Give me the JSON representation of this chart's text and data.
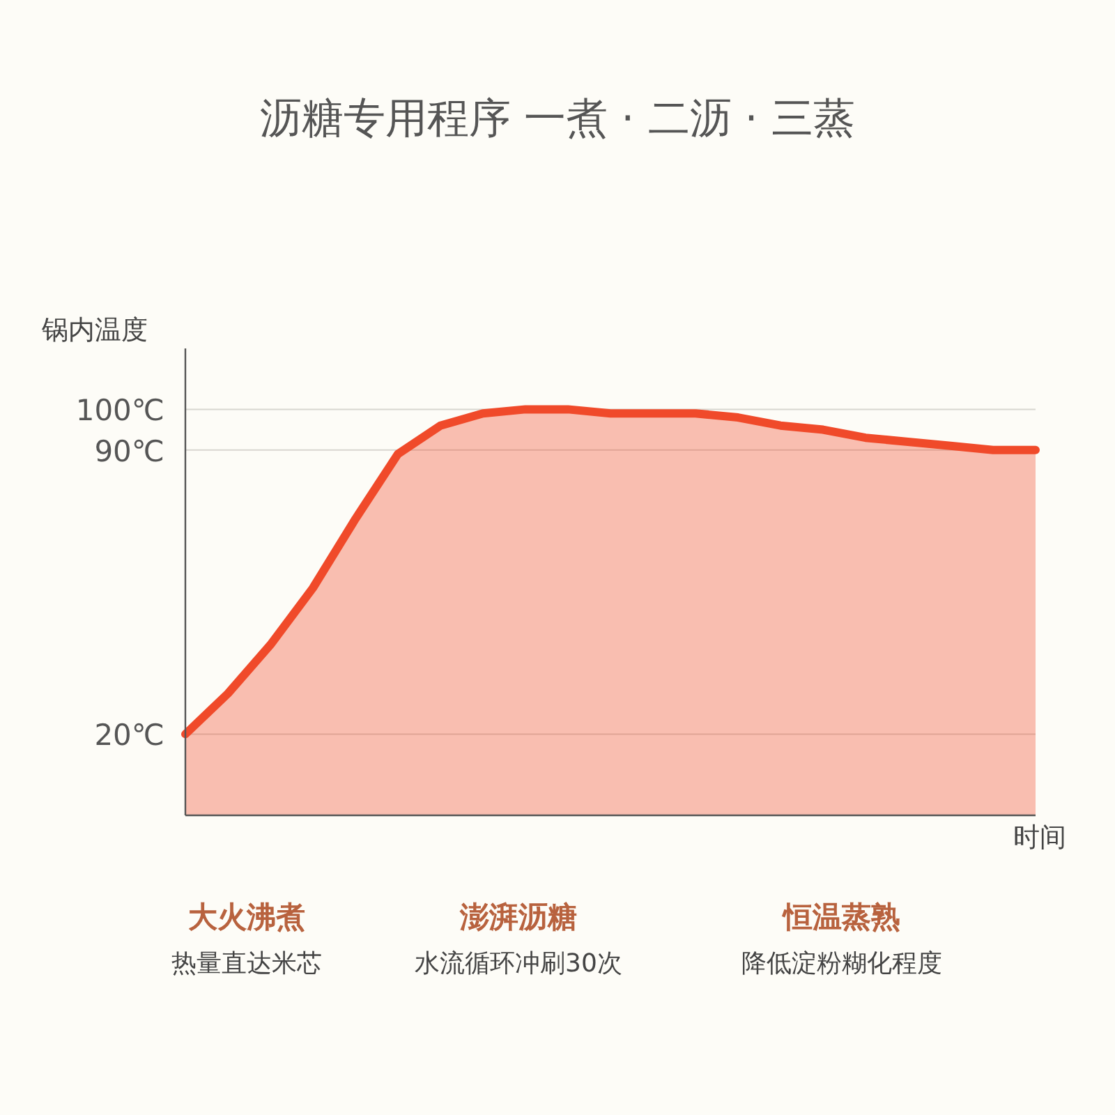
{
  "chart_data": {
    "type": "area",
    "title": "沥糖专用程序 一煮 · 二沥 · 三蒸",
    "ylabel": "锅内温度",
    "xlabel": "时间",
    "categories": [
      null,
      null,
      null,
      null,
      null,
      null,
      null,
      null,
      null,
      null,
      null,
      null,
      null,
      null,
      null,
      null,
      null,
      null,
      null,
      null,
      null
    ],
    "series": [
      {
        "color": "#f04a2a",
        "values": [
          20,
          30,
          42,
          56,
          73,
          89,
          96,
          99,
          100,
          100,
          99,
          99,
          99,
          98,
          96,
          95,
          93,
          92,
          91,
          90,
          90
        ]
      }
    ],
    "ylim": [
      0,
      115
    ],
    "yticks": [
      {
        "value": 20,
        "label": "20℃"
      },
      {
        "value": 90,
        "label": "90℃"
      },
      {
        "value": 100,
        "label": "100℃"
      }
    ],
    "grid": "y",
    "annotations": [
      "大火沸煮",
      "热量直达米芯",
      "澎湃沥糖",
      "水流循环冲刷30次",
      "恒温蒸熟",
      "降低淀粉糊化程度"
    ]
  }
}
